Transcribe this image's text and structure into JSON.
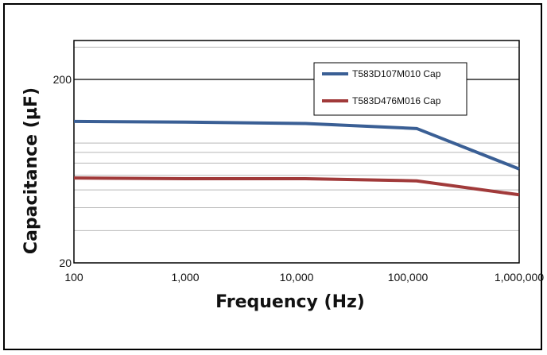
{
  "chart_data": {
    "type": "line",
    "title": "",
    "xlabel": "Frequency (Hz)",
    "ylabel": "Capacitance (µF)",
    "x_scale": "log",
    "y_scale": "log",
    "xlim": [
      100,
      1000000
    ],
    "ylim": [
      20,
      300
    ],
    "x_ticks": [
      100,
      1000,
      10000,
      100000,
      1000000
    ],
    "x_tick_labels": [
      "100",
      "1,000",
      "10,000",
      "100,000",
      "1,000,000"
    ],
    "y_ticks": [
      20,
      200
    ],
    "y_tick_labels": [
      "20",
      "200"
    ],
    "grid": "horizontal minor grid",
    "legend_position": "top-right",
    "x": [
      100,
      1000,
      12000,
      120000,
      1000000
    ],
    "series": [
      {
        "name": "T583D107M010 Cap",
        "color": "#3a5f95",
        "values": [
          118,
          117,
          115,
          108,
          65
        ]
      },
      {
        "name": "T583D476M016 Cap",
        "color": "#a13a3a",
        "values": [
          58,
          57.5,
          57.5,
          56,
          47
        ]
      }
    ]
  }
}
